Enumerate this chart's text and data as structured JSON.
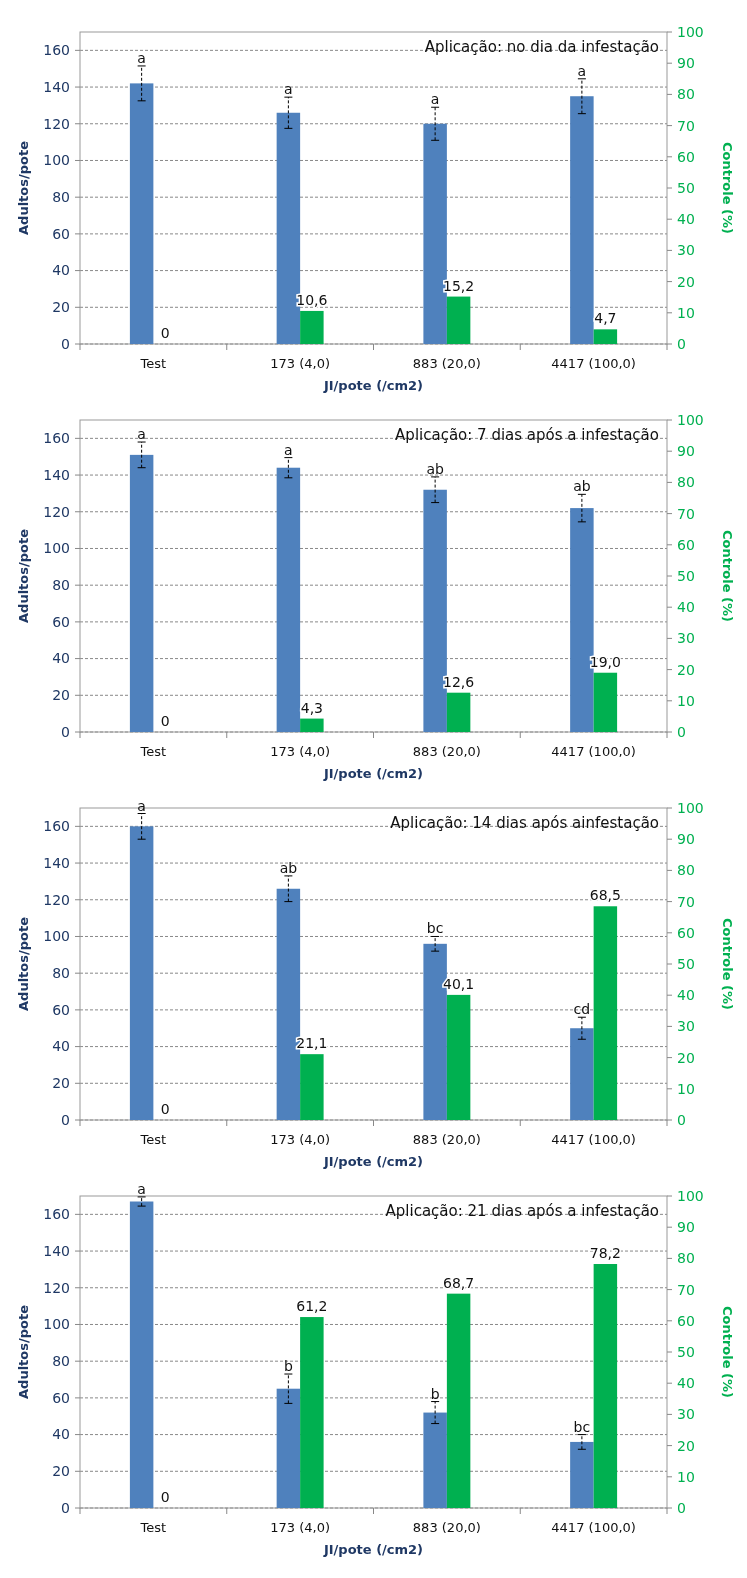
{
  "chart_data": [
    {
      "type": "bar",
      "title": "Aplicação: no dia da infestação",
      "xlabel": "JI/pote (/cm2)",
      "ylabel": "Adultos/pote",
      "y2label": "Controle (%)",
      "categories": [
        "Test",
        "173 (4,0)",
        "883 (20,0)",
        "4417 (100,0)"
      ],
      "ylim": [
        0,
        170
      ],
      "yticks": [
        0,
        20,
        40,
        60,
        80,
        100,
        120,
        140,
        160
      ],
      "y2lim": [
        0,
        100
      ],
      "y2ticks": [
        0,
        10,
        20,
        30,
        40,
        50,
        60,
        70,
        80,
        90,
        100
      ],
      "grid": "y",
      "series": [
        {
          "color": "#4f81bd",
          "values": [
            142,
            126,
            120,
            135
          ],
          "errors": [
            9.5,
            8.5,
            9,
            9.5
          ]
        },
        {
          "color": "#00b050",
          "axis": "y2",
          "values": [
            0,
            10.6,
            15.2,
            4.7
          ],
          "value_labels": [
            "0",
            "10,6",
            "15,2",
            "4,7"
          ]
        }
      ],
      "annotations": [
        "a",
        "a",
        "a",
        "a"
      ]
    },
    {
      "type": "bar",
      "title": "Aplicação: 7 dias após a infestação",
      "xlabel": "JI/pote (/cm2)",
      "ylabel": "Adultos/pote",
      "y2label": "Controle (%)",
      "categories": [
        "Test",
        "173 (4,0)",
        "883 (20,0)",
        "4417 (100,0)"
      ],
      "ylim": [
        0,
        170
      ],
      "yticks": [
        0,
        20,
        40,
        60,
        80,
        100,
        120,
        140,
        160
      ],
      "y2lim": [
        0,
        100
      ],
      "y2ticks": [
        0,
        10,
        20,
        30,
        40,
        50,
        60,
        70,
        80,
        90,
        100
      ],
      "grid": "y",
      "series": [
        {
          "color": "#4f81bd",
          "values": [
            151,
            144,
            132,
            122
          ],
          "errors": [
            7,
            5.5,
            7,
            7.5
          ]
        },
        {
          "color": "#00b050",
          "axis": "y2",
          "values": [
            0,
            4.3,
            12.6,
            19.0
          ],
          "value_labels": [
            "0",
            "4,3",
            "12,6",
            "19,0"
          ]
        }
      ],
      "annotations": [
        "a",
        "a",
        "ab",
        "ab"
      ]
    },
    {
      "type": "bar",
      "title": "Aplicação: 14 dias após ainfestação",
      "xlabel": "JI/pote (/cm2)",
      "ylabel": "Adultos/pote",
      "y2label": "Controle (%)",
      "categories": [
        "Test",
        "173 (4,0)",
        "883 (20,0)",
        "4417 (100,0)"
      ],
      "ylim": [
        0,
        170
      ],
      "yticks": [
        0,
        20,
        40,
        60,
        80,
        100,
        120,
        140,
        160
      ],
      "y2lim": [
        0,
        100
      ],
      "y2ticks": [
        0,
        10,
        20,
        30,
        40,
        50,
        60,
        70,
        80,
        90,
        100
      ],
      "grid": "y",
      "series": [
        {
          "color": "#4f81bd",
          "values": [
            160,
            126,
            96,
            50
          ],
          "errors": [
            7,
            7,
            4,
            6
          ]
        },
        {
          "color": "#00b050",
          "axis": "y2",
          "values": [
            0,
            21.1,
            40.1,
            68.5
          ],
          "value_labels": [
            "0",
            "21,1",
            "40,1",
            "68,5"
          ]
        }
      ],
      "annotations": [
        "a",
        "ab",
        "bc",
        "cd"
      ]
    },
    {
      "type": "bar",
      "title": "Aplicação: 21 dias após a infestação",
      "xlabel": "JI/pote (/cm2)",
      "ylabel": "Adultos/pote",
      "y2label": "Controle (%)",
      "categories": [
        "Test",
        "173 (4,0)",
        "883 (20,0)",
        "4417 (100,0)"
      ],
      "ylim": [
        0,
        170
      ],
      "yticks": [
        0,
        20,
        40,
        60,
        80,
        100,
        120,
        140,
        160
      ],
      "y2lim": [
        0,
        100
      ],
      "y2ticks": [
        0,
        10,
        20,
        30,
        40,
        50,
        60,
        70,
        80,
        90,
        100
      ],
      "grid": "y",
      "series": [
        {
          "color": "#4f81bd",
          "values": [
            167,
            65,
            52,
            36
          ],
          "errors": [
            2.5,
            8,
            6,
            4
          ]
        },
        {
          "color": "#00b050",
          "axis": "y2",
          "values": [
            0,
            61.2,
            68.7,
            78.2
          ],
          "value_labels": [
            "0",
            "61,2",
            "68,7",
            "78,2"
          ]
        }
      ],
      "annotations": [
        "a",
        "b",
        "b",
        "bc"
      ]
    }
  ]
}
